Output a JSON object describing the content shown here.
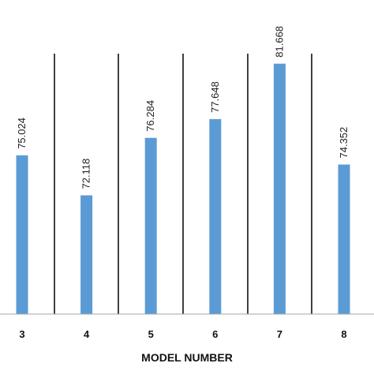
{
  "chart_data": {
    "type": "bar",
    "categories": [
      "3",
      "4",
      "5",
      "6",
      "7",
      "8"
    ],
    "values": [
      75.024,
      72.118,
      76.284,
      77.648,
      81.668,
      74.352
    ],
    "data_labels": [
      "75.024",
      "72.118",
      "76.284",
      "77.648",
      "81.668",
      "74.352"
    ],
    "xlabel": "MODEL NUMBER",
    "ylabel": "",
    "title": "",
    "ylim": [
      63.5,
      84.0
    ],
    "grid": "vertical separators between categories",
    "legend": "none",
    "colors": {
      "bar": "#5b9bd5",
      "separator": "#000000",
      "axis": "#a6a6a6",
      "text": "#111111"
    }
  }
}
